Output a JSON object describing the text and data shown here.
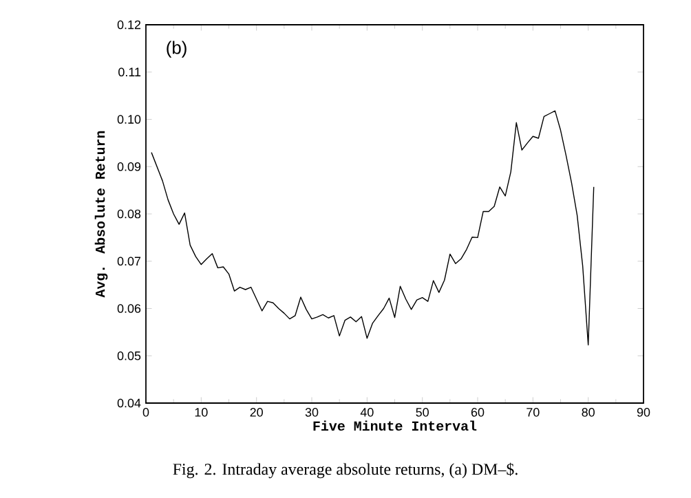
{
  "chart_data": {
    "type": "line",
    "xlabel": "Five Minute Interval",
    "ylabel": "Avg. Absolute Return",
    "x": [
      1,
      2,
      3,
      4,
      5,
      6,
      7,
      8,
      9,
      10,
      11,
      12,
      13,
      14,
      15,
      16,
      17,
      18,
      19,
      20,
      21,
      22,
      23,
      24,
      25,
      26,
      27,
      28,
      29,
      30,
      31,
      32,
      33,
      34,
      35,
      36,
      37,
      38,
      39,
      40,
      41,
      42,
      43,
      44,
      45,
      46,
      47,
      48,
      49,
      50,
      51,
      52,
      53,
      54,
      55,
      56,
      57,
      58,
      59,
      60,
      61,
      62,
      63,
      64,
      65,
      66,
      67,
      68,
      69,
      70,
      71,
      72,
      73,
      74,
      75,
      76,
      77,
      78,
      79,
      80,
      81
    ],
    "values": [
      0.093,
      0.09,
      0.087,
      0.083,
      0.08,
      0.0778,
      0.0802,
      0.0734,
      0.071,
      0.0693,
      0.0705,
      0.0716,
      0.0686,
      0.0688,
      0.0673,
      0.0637,
      0.0645,
      0.064,
      0.0645,
      0.062,
      0.0595,
      0.0615,
      0.0612,
      0.06,
      0.059,
      0.0578,
      0.0585,
      0.0624,
      0.0598,
      0.0578,
      0.0582,
      0.0587,
      0.058,
      0.0585,
      0.0542,
      0.0575,
      0.0582,
      0.0572,
      0.0583,
      0.0537,
      0.0569,
      0.0585,
      0.06,
      0.0622,
      0.0581,
      0.0647,
      0.062,
      0.0598,
      0.0618,
      0.0623,
      0.0615,
      0.0659,
      0.0634,
      0.066,
      0.0715,
      0.0695,
      0.0705,
      0.0725,
      0.0751,
      0.075,
      0.0805,
      0.0805,
      0.0816,
      0.0857,
      0.0838,
      0.0889,
      0.0993,
      0.0935,
      0.095,
      0.0964,
      0.096,
      0.1006,
      0.1012,
      0.1018,
      0.0977,
      0.0923,
      0.0865,
      0.0797,
      0.069,
      0.0523,
      0.0857
    ],
    "color": "#000000",
    "xlim": [
      0,
      90
    ],
    "xticks": [
      0,
      10,
      20,
      30,
      40,
      50,
      60,
      70,
      80,
      90
    ],
    "ylim": [
      0.04,
      0.12
    ],
    "yticks": [
      {
        "value": 0.04,
        "label": "0.04"
      },
      {
        "value": 0.05,
        "label": "0.05"
      },
      {
        "value": 0.06,
        "label": "0.06"
      },
      {
        "value": 0.07,
        "label": "0.07"
      },
      {
        "value": 0.08,
        "label": "0.08"
      },
      {
        "value": 0.09,
        "label": "0.09"
      },
      {
        "value": 0.1,
        "label": "0.10"
      },
      {
        "value": 0.11,
        "label": "0.11"
      },
      {
        "value": 0.12,
        "label": "0.12"
      }
    ],
    "annotations": [
      "(b)",
      "Fig. 2. Intraday average absolute returns, (a) DM–$."
    ]
  }
}
